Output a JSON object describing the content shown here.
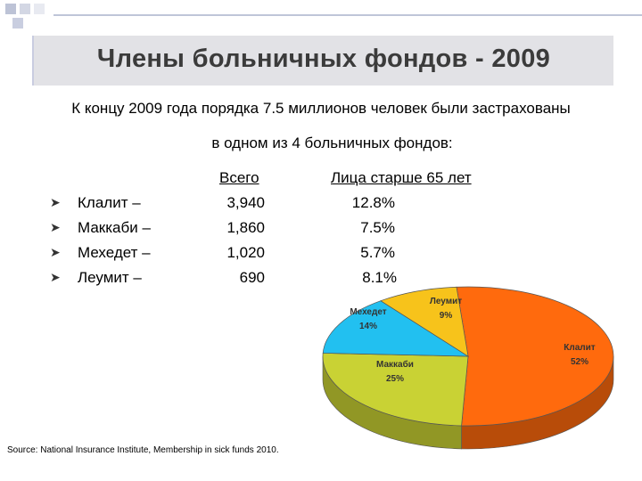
{
  "title": "Члены больничных фондов - 2009",
  "intro_line1": "К концу 2009 года порядка 7.5 миллионов человек были застрахованы",
  "intro_line2": "в одном из 4 больничных фондов:",
  "col_total": "Всего",
  "col_over65": "Лица старше 65 лет",
  "rows": [
    {
      "name": "Клалит –",
      "total": "3,940",
      "over65": "12.8%"
    },
    {
      "name": "Маккаби –",
      "total": "1,860",
      "over65": "7.5%"
    },
    {
      "name": "Мехедет –",
      "total": "1,020",
      "over65": "5.7%"
    },
    {
      "name": "Леумит –",
      "total": "690",
      "over65": "8.1%"
    }
  ],
  "source": "Source: National Insurance Institute, Membership in sick funds 2010.",
  "colors": {
    "clalit": "#ff6a0d",
    "maccabi": "#c9d234",
    "meuhedet": "#22c0f0",
    "leumit": "#f7c31b",
    "squares": [
      "#bdc3d6",
      "#d3d7e4",
      "#e8eaf1"
    ]
  },
  "chart_data": {
    "type": "pie",
    "style": "3d",
    "labels": [
      "Клалит",
      "Маккаби",
      "Мехедет",
      "Леумит"
    ],
    "values": [
      52,
      25,
      14,
      9
    ],
    "value_labels": [
      "52%",
      "25%",
      "14%",
      "9%"
    ],
    "colors": [
      "#ff6a0d",
      "#c9d234",
      "#22c0f0",
      "#f7c31b"
    ]
  }
}
